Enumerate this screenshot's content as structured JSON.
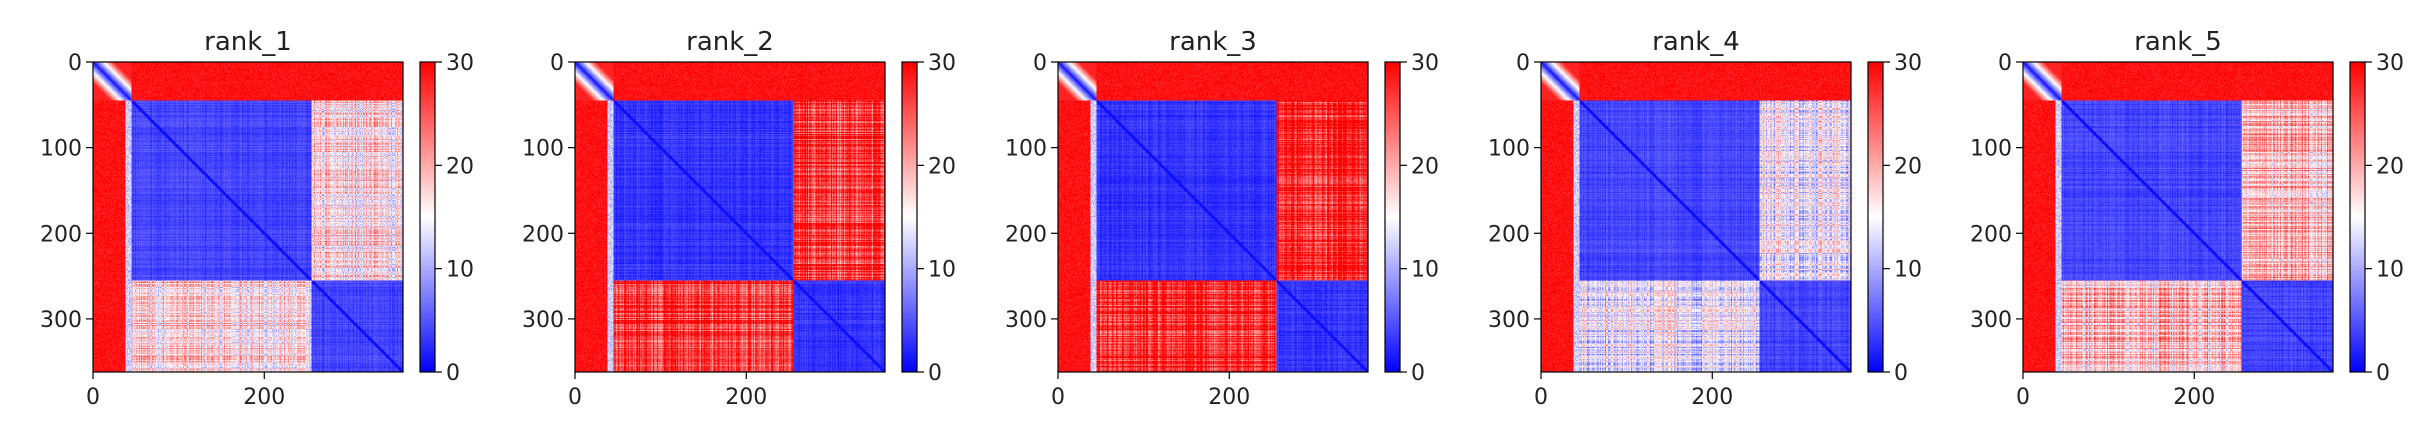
{
  "chart_data": [
    {
      "type": "heatmap",
      "title": "rank_1",
      "xlabel": "",
      "ylabel": "",
      "n": 362,
      "domain_boundaries": [
        45,
        255
      ],
      "xlim": [
        0,
        362
      ],
      "ylim": [
        362,
        0
      ],
      "x_ticks": [
        0,
        200
      ],
      "y_ticks": [
        0,
        100,
        200,
        300
      ],
      "colorbar": {
        "min": 0,
        "max": 30,
        "ticks": [
          0,
          10,
          20,
          30
        ],
        "colormap": "bwr"
      },
      "block_values": {
        "n_terminal_tail": 29,
        "domain1_core": 4,
        "domain2_core": 4,
        "domain1_domain2": 17
      }
    },
    {
      "type": "heatmap",
      "title": "rank_2",
      "xlabel": "",
      "ylabel": "",
      "n": 362,
      "domain_boundaries": [
        45,
        255
      ],
      "xlim": [
        0,
        362
      ],
      "ylim": [
        362,
        0
      ],
      "x_ticks": [
        0,
        200
      ],
      "y_ticks": [
        0,
        100,
        200,
        300
      ],
      "colorbar": {
        "min": 0,
        "max": 30,
        "ticks": [
          0,
          10,
          20,
          30
        ],
        "colormap": "bwr"
      },
      "block_values": {
        "n_terminal_tail": 29,
        "domain1_core": 3,
        "domain2_core": 3,
        "domain1_domain2": 27
      }
    },
    {
      "type": "heatmap",
      "title": "rank_3",
      "xlabel": "",
      "ylabel": "",
      "n": 362,
      "domain_boundaries": [
        45,
        255
      ],
      "xlim": [
        0,
        362
      ],
      "ylim": [
        362,
        0
      ],
      "x_ticks": [
        0,
        200
      ],
      "y_ticks": [
        0,
        100,
        200,
        300
      ],
      "colorbar": {
        "min": 0,
        "max": 30,
        "ticks": [
          0,
          10,
          20,
          30
        ],
        "colormap": "bwr"
      },
      "block_values": {
        "n_terminal_tail": 29,
        "domain1_core": 3,
        "domain2_core": 3,
        "domain1_domain2": 28
      }
    },
    {
      "type": "heatmap",
      "title": "rank_4",
      "xlabel": "",
      "ylabel": "",
      "n": 362,
      "domain_boundaries": [
        45,
        255
      ],
      "xlim": [
        0,
        362
      ],
      "ylim": [
        362,
        0
      ],
      "x_ticks": [
        0,
        200
      ],
      "y_ticks": [
        0,
        100,
        200,
        300
      ],
      "colorbar": {
        "min": 0,
        "max": 30,
        "ticks": [
          0,
          10,
          20,
          30
        ],
        "colormap": "bwr"
      },
      "block_values": {
        "n_terminal_tail": 29,
        "domain1_core": 4,
        "domain2_core": 4,
        "domain1_domain2": 14
      }
    },
    {
      "type": "heatmap",
      "title": "rank_5",
      "xlabel": "",
      "ylabel": "",
      "n": 362,
      "domain_boundaries": [
        45,
        255
      ],
      "xlim": [
        0,
        362
      ],
      "ylim": [
        362,
        0
      ],
      "x_ticks": [
        0,
        200
      ],
      "y_ticks": [
        0,
        100,
        200,
        300
      ],
      "colorbar": {
        "min": 0,
        "max": 30,
        "ticks": [
          0,
          10,
          20,
          30
        ],
        "colormap": "bwr"
      },
      "block_values": {
        "n_terminal_tail": 29,
        "domain1_core": 4,
        "domain2_core": 4,
        "domain1_domain2": 19
      }
    }
  ]
}
